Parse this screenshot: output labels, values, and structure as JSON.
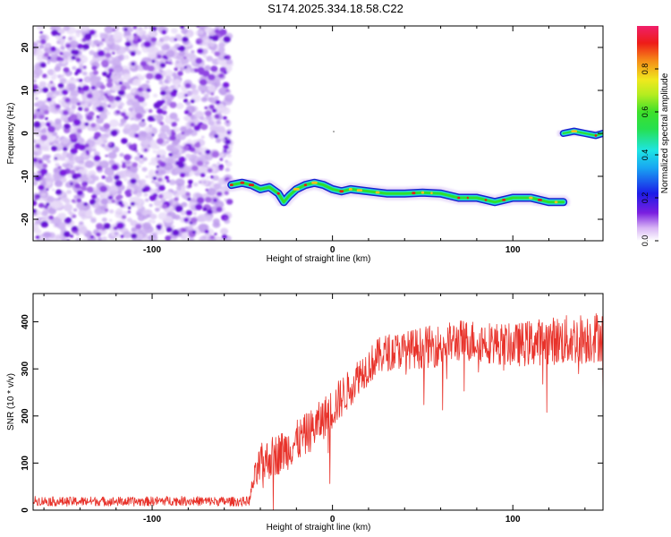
{
  "title": "S174.2025.334.18.58.C22",
  "colors": {
    "snr_line": "#e8322a",
    "ridge_edge": "#1a22d0",
    "ridge_mid": "#22d8d8",
    "ridge_core": "#2ee02e",
    "ridge_peak": "#e0201a",
    "noise_dark": "#7a1fe0",
    "noise_light": "#d8c0f4"
  },
  "chart_data": [
    {
      "type": "heatmap",
      "name": "spectrogram",
      "xlabel": "Height of straight line (km)",
      "ylabel": "Frequency (Hz)",
      "xlim": [
        -166,
        150
      ],
      "ylim": [
        -25,
        25
      ],
      "xticks": [
        -100,
        0,
        100
      ],
      "xtick_labels": [
        "-100",
        "0",
        "100"
      ],
      "yticks": [
        -20,
        -10,
        0,
        10,
        20
      ],
      "ytick_labels": [
        "-20",
        "-10",
        "0",
        "10",
        "20"
      ],
      "noise_region": {
        "x": [
          -166,
          -57
        ],
        "y": [
          -25,
          25
        ]
      },
      "ridge_trace": {
        "x": [
          -56,
          -50,
          -45,
          -40,
          -35,
          -30,
          -27,
          -24,
          -20,
          -15,
          -10,
          -5,
          0,
          5,
          10,
          20,
          30,
          40,
          50,
          60,
          70,
          80,
          90,
          100,
          110,
          120,
          128
        ],
        "y": [
          -12,
          -11.5,
          -12,
          -13,
          -12.5,
          -14,
          -16,
          -14.5,
          -13,
          -12,
          -11.5,
          -12,
          -13,
          -13.5,
          -13,
          -13.5,
          -14,
          -14,
          -13.8,
          -14,
          -15,
          -15,
          -16,
          -15,
          -15,
          -16,
          -16
        ]
      },
      "secondary_trace": {
        "x": [
          128,
          134,
          140,
          146,
          150
        ],
        "y": [
          0,
          0.5,
          0,
          -0.5,
          0
        ]
      },
      "colorbar": {
        "label": "Normalized spectral amplitude",
        "range": [
          0.0,
          1.0
        ],
        "ticks": [
          0.0,
          0.2,
          0.4,
          0.6,
          0.8
        ],
        "tick_labels": [
          "0.0",
          "0.2",
          "0.4",
          "0.6",
          "0.8"
        ]
      }
    },
    {
      "type": "line",
      "name": "snr",
      "xlabel": "Height of straight line (km)",
      "ylabel": "SNR (10 * v/v)",
      "xlim": [
        -166,
        150
      ],
      "ylim": [
        0,
        460
      ],
      "xticks": [
        -100,
        0,
        100
      ],
      "xtick_labels": [
        "-100",
        "0",
        "100"
      ],
      "yticks": [
        0,
        100,
        200,
        300,
        400
      ],
      "ytick_labels": [
        "0",
        "100",
        "200",
        "300",
        "400"
      ],
      "series": [
        {
          "name": "SNR",
          "x": [
            -166,
            -150,
            -130,
            -110,
            -90,
            -70,
            -50,
            -46,
            -44,
            -40,
            -35,
            -30,
            -25,
            -20,
            -15,
            -10,
            -5,
            0,
            5,
            10,
            15,
            20,
            25,
            30,
            40,
            50,
            60,
            70,
            80,
            90,
            100,
            110,
            120,
            130,
            140,
            150
          ],
          "values": [
            20,
            18,
            19,
            18,
            20,
            19,
            18,
            20,
            60,
            95,
            110,
            120,
            130,
            145,
            160,
            175,
            195,
            215,
            240,
            260,
            290,
            305,
            325,
            335,
            340,
            345,
            350,
            360,
            360,
            355,
            350,
            355,
            360,
            360,
            365,
            370
          ],
          "noise_amp": [
            10,
            10,
            10,
            10,
            10,
            10,
            10,
            10,
            25,
            45,
            45,
            45,
            45,
            45,
            45,
            45,
            45,
            45,
            45,
            40,
            40,
            40,
            40,
            40,
            40,
            45,
            45,
            45,
            45,
            45,
            45,
            50,
            50,
            55,
            55,
            55
          ]
        }
      ]
    }
  ]
}
